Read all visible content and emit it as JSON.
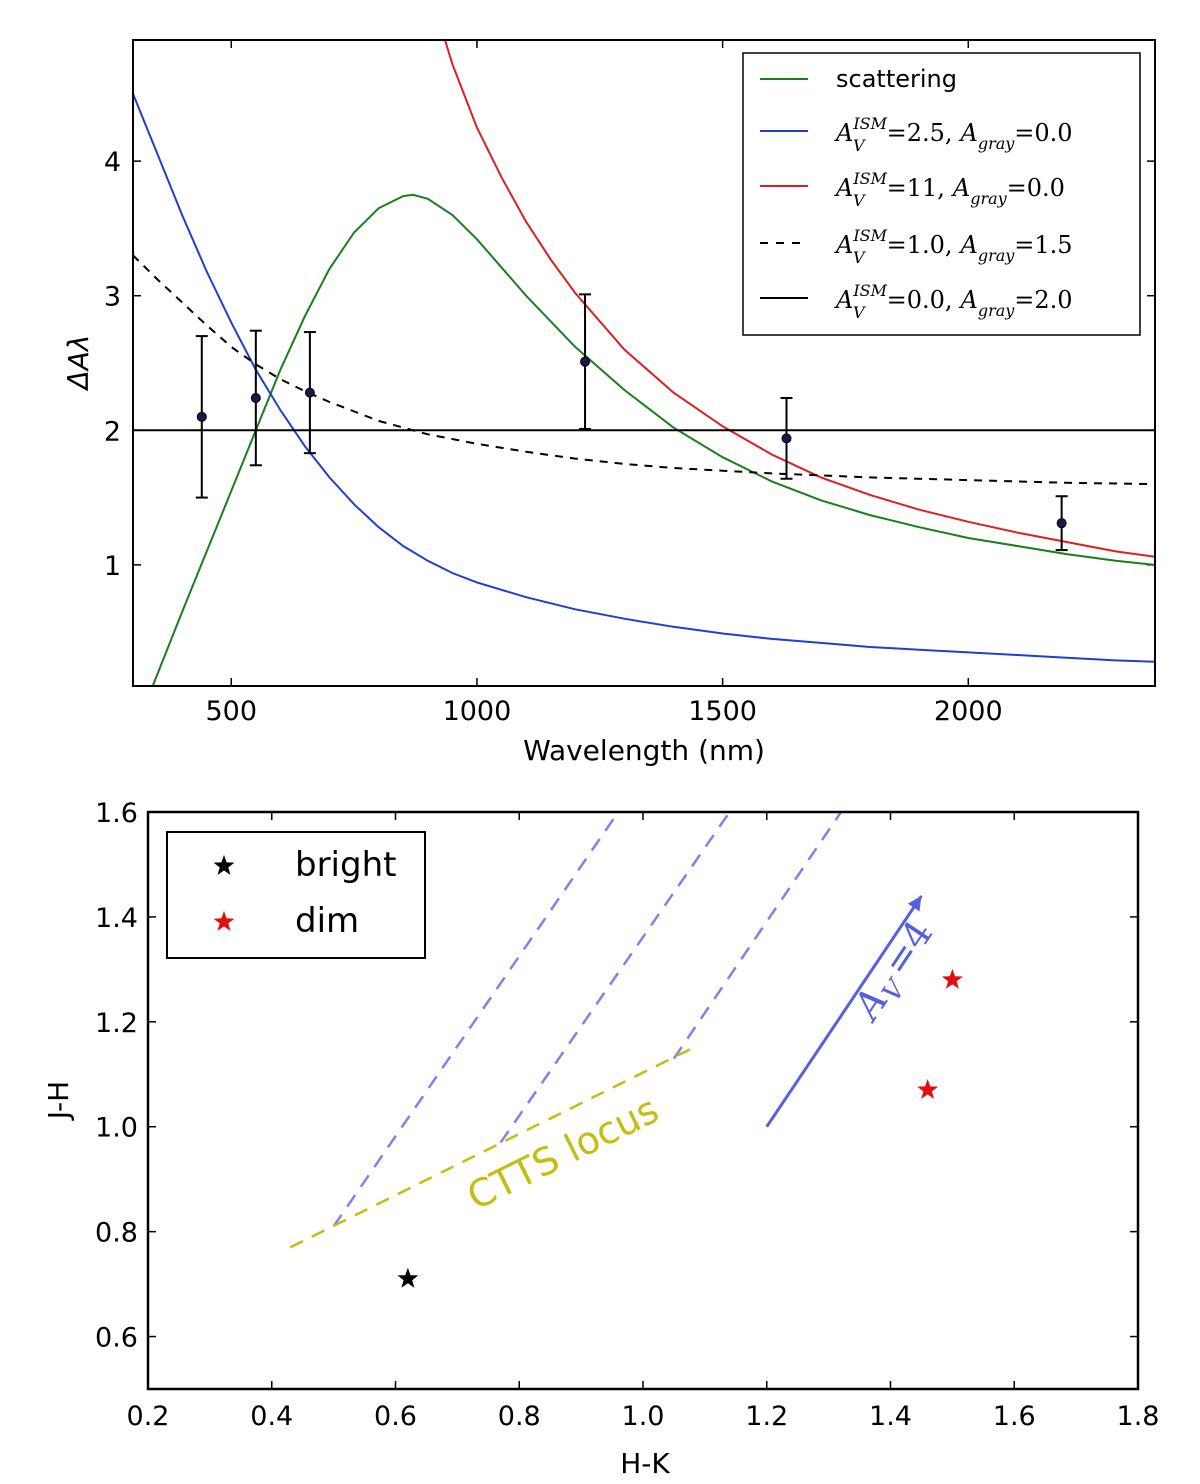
{
  "colors": {
    "scattering": "#1a7f1a",
    "ism25": "#1f3fd0",
    "ism11": "#dd1f1f",
    "dashed_black": "#000000",
    "gray_line": "#000000",
    "points": "#1a1a4a",
    "bright": "#000000",
    "dim": "#e01010",
    "reddening_lines": "#7b84e8",
    "ctts": "#c8bc10",
    "arrow": "#5560e0"
  },
  "chart_data": [
    {
      "type": "line",
      "name": "top",
      "xlabel": "Wavelength (nm)",
      "ylabel": "ΔAλ",
      "xlim": [
        300,
        2380
      ],
      "ylim": [
        0.1,
        4.9
      ],
      "xticks": [
        500,
        1000,
        1500,
        2000
      ],
      "yticks": [
        1,
        2,
        3,
        4
      ],
      "xtick_labels": [
        "500",
        "1000",
        "1500",
        "2000"
      ],
      "ytick_labels": [
        "1",
        "2",
        "3",
        "4"
      ],
      "legend_position": "top-right",
      "series": [
        {
          "key": "scattering",
          "name": "scattering",
          "style": "solid",
          "x": [
            340,
            400,
            450,
            500,
            550,
            600,
            650,
            700,
            750,
            800,
            850,
            870,
            900,
            950,
            1000,
            1100,
            1200,
            1300,
            1400,
            1500,
            1600,
            1700,
            1800,
            1900,
            2000,
            2100,
            2200,
            2300,
            2380
          ],
          "y": [
            0.1,
            0.65,
            1.1,
            1.55,
            2.0,
            2.45,
            2.85,
            3.2,
            3.47,
            3.65,
            3.74,
            3.75,
            3.72,
            3.6,
            3.42,
            3.0,
            2.62,
            2.3,
            2.02,
            1.8,
            1.62,
            1.48,
            1.37,
            1.28,
            1.2,
            1.14,
            1.08,
            1.03,
            1.0
          ]
        },
        {
          "key": "ism25",
          "name": "A_V^ISM =2.5, A_gray =0.0",
          "legend_value1": "=2.5,",
          "legend_value2": "=0.0",
          "style": "solid",
          "x": [
            300,
            350,
            400,
            450,
            500,
            550,
            600,
            650,
            700,
            750,
            800,
            850,
            900,
            950,
            1000,
            1100,
            1200,
            1300,
            1400,
            1500,
            1600,
            1700,
            1800,
            1900,
            2000,
            2100,
            2200,
            2300,
            2380
          ],
          "y": [
            4.5,
            4.05,
            3.6,
            3.18,
            2.8,
            2.45,
            2.15,
            1.88,
            1.65,
            1.45,
            1.28,
            1.14,
            1.03,
            0.94,
            0.87,
            0.76,
            0.67,
            0.6,
            0.54,
            0.49,
            0.45,
            0.42,
            0.39,
            0.37,
            0.35,
            0.33,
            0.31,
            0.29,
            0.28
          ]
        },
        {
          "key": "ism11",
          "name": "A_V^ISM =11, A_gray =0.0",
          "legend_value1": "=11,",
          "legend_value2": "=0.0",
          "style": "solid",
          "x": [
            935,
            950,
            1000,
            1050,
            1100,
            1150,
            1200,
            1300,
            1400,
            1500,
            1600,
            1700,
            1800,
            1900,
            2000,
            2100,
            2200,
            2300,
            2380
          ],
          "y": [
            4.9,
            4.72,
            4.25,
            3.88,
            3.55,
            3.27,
            3.02,
            2.6,
            2.28,
            2.03,
            1.82,
            1.65,
            1.52,
            1.41,
            1.32,
            1.24,
            1.17,
            1.1,
            1.06
          ]
        },
        {
          "key": "dashed",
          "name": "A_V^ISM =1.0, A_gray =1.5",
          "legend_value1": "=1.0,",
          "legend_value2": "=1.5",
          "style": "dashed",
          "x": [
            300,
            350,
            400,
            450,
            500,
            550,
            600,
            650,
            700,
            800,
            900,
            1000,
            1100,
            1200,
            1300,
            1400,
            1500,
            1600,
            1800,
            2000,
            2200,
            2380
          ],
          "y": [
            3.3,
            3.12,
            2.95,
            2.78,
            2.62,
            2.49,
            2.38,
            2.29,
            2.21,
            2.07,
            1.97,
            1.9,
            1.84,
            1.79,
            1.75,
            1.72,
            1.7,
            1.68,
            1.65,
            1.63,
            1.61,
            1.6
          ]
        },
        {
          "key": "gray",
          "name": "A_V^ISM =0.0, A_gray =2.0",
          "legend_value1": "=0.0,",
          "legend_value2": "=2.0",
          "style": "solid",
          "x": [
            300,
            2380
          ],
          "y": [
            2.0,
            2.0
          ]
        }
      ],
      "points": [
        {
          "x": 440,
          "y": 2.1,
          "err": 0.6
        },
        {
          "x": 550,
          "y": 2.24,
          "err": 0.5
        },
        {
          "x": 660,
          "y": 2.28,
          "err": 0.45
        },
        {
          "x": 1220,
          "y": 2.51,
          "err": 0.5
        },
        {
          "x": 1630,
          "y": 1.94,
          "err": 0.3
        },
        {
          "x": 2190,
          "y": 1.31,
          "err": 0.2
        }
      ]
    },
    {
      "type": "scatter",
      "name": "bottom",
      "xlabel": "H-K",
      "ylabel": "J-H",
      "xlim": [
        0.2,
        1.8
      ],
      "ylim": [
        0.5,
        1.6
      ],
      "xticks": [
        0.2,
        0.4,
        0.6,
        0.8,
        1.0,
        1.2,
        1.4,
        1.6,
        1.8
      ],
      "yticks": [
        0.6,
        0.8,
        1.0,
        1.2,
        1.4,
        1.6
      ],
      "xtick_labels": [
        "0.2",
        "0.4",
        "0.6",
        "0.8",
        "1.0",
        "1.2",
        "1.4",
        "1.6",
        "1.8"
      ],
      "ytick_labels": [
        "0.6",
        "0.8",
        "1.0",
        "1.2",
        "1.4",
        "1.6"
      ],
      "legend_position": "top-left",
      "legend": [
        {
          "key": "bright",
          "label": "bright"
        },
        {
          "key": "dim",
          "label": "dim"
        }
      ],
      "bright": [
        {
          "x": 0.62,
          "y": 0.71
        }
      ],
      "dim": [
        {
          "x": 1.46,
          "y": 1.07
        },
        {
          "x": 1.5,
          "y": 1.28
        }
      ],
      "ctts_locus": {
        "label": "CTTS locus",
        "x": [
          0.43,
          1.08
        ],
        "y": [
          0.77,
          1.15
        ]
      },
      "reddening_lines": [
        {
          "x": [
            0.5,
            0.96
          ],
          "y": [
            0.81,
            1.6
          ]
        },
        {
          "x": [
            0.77,
            1.14
          ],
          "y": [
            0.97,
            1.6
          ]
        },
        {
          "x": [
            1.05,
            1.32
          ],
          "y": [
            1.13,
            1.6
          ]
        }
      ],
      "av_arrow": {
        "label_main": "A",
        "label_sub": "V",
        "label_rest": "=4",
        "x": [
          1.2,
          1.45
        ],
        "y": [
          1.0,
          1.44
        ]
      }
    }
  ]
}
